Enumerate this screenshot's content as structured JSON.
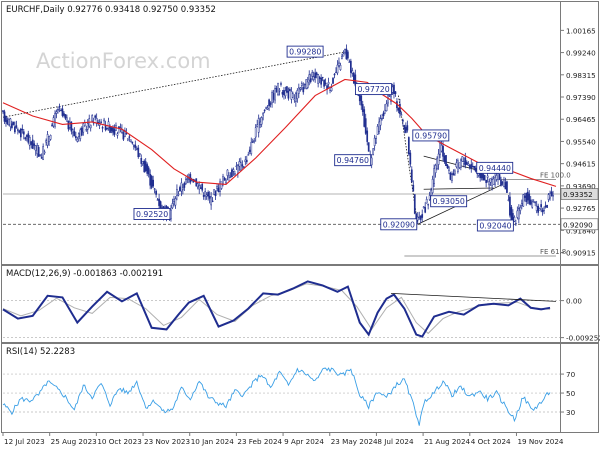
{
  "watermark": "ActionForex.com",
  "colors": {
    "candle": "#1f2d8f",
    "ema": "#e02020",
    "macd": "#1f2d8f",
    "signal": "#b0b0b0",
    "rsi": "#3a9fe6",
    "trendline": "#1a1a1a",
    "label_border": "#1f2d8f",
    "level": "#555555"
  },
  "chart_data": [
    {
      "type": "line",
      "panel": "price",
      "title": "EURCHF,Daily  0.92776  0.93418  0.92750  0.93352",
      "ylim": [
        0.9052,
        1.0068
      ],
      "yticks": [
        "1.00165",
        "0.99240",
        "0.98315",
        "0.97390",
        "0.96465",
        "0.95540",
        "0.94615",
        "0.93690",
        "0.92765",
        "0.91840",
        "0.90915"
      ],
      "current_price_label": "0.93352",
      "current_price": 0.93352,
      "level_label": "0.92090",
      "level": 0.9209,
      "x_tick_labels": [
        "12 Jul 2023",
        "25 Aug 2023",
        "10 Oct 2023",
        "23 Nov 2023",
        "10 Jan 2024",
        "23 Feb 2024",
        "9 Apr 2024",
        "23 May 2024",
        "8 Jul 2024",
        "21 Aug 2024",
        "4 Oct 2024",
        "19 Nov 2024"
      ],
      "x_range": [
        0,
        372
      ],
      "series": [
        {
          "kind": "candles",
          "x": [
            0,
            15,
            27,
            38,
            50,
            62,
            77,
            87,
            98,
            108,
            113,
            118,
            128,
            140,
            151,
            164,
            175,
            186,
            197,
            209,
            221,
            231,
            241,
            248,
            254,
            263,
            273,
            279,
            287,
            295,
            302,
            310,
            318,
            328,
            334,
            339,
            344,
            352,
            358,
            365,
            370
          ],
          "values": [
            0.9665,
            0.958,
            0.9495,
            0.969,
            0.9575,
            0.965,
            0.96,
            0.957,
            0.9423,
            0.927,
            0.9252,
            0.9345,
            0.941,
            0.931,
            0.941,
            0.947,
            0.9664,
            0.978,
            0.9738,
            0.9825,
            0.9785,
            0.9928,
            0.9745,
            0.9476,
            0.9625,
            0.9772,
            0.9579,
            0.9209,
            0.9305,
            0.9535,
            0.941,
            0.948,
            0.9444,
            0.9385,
            0.9405,
            0.9365,
            0.9204,
            0.9328,
            0.9285,
            0.9275,
            0.9335
          ]
        },
        {
          "kind": "ema",
          "x": [
            0,
            20,
            40,
            60,
            80,
            100,
            115,
            130,
            150,
            170,
            190,
            210,
            230,
            245,
            255,
            265,
            275,
            285,
            300,
            320,
            340,
            355,
            372
          ],
          "values": [
            0.9715,
            0.966,
            0.9625,
            0.9635,
            0.9605,
            0.952,
            0.944,
            0.9385,
            0.9375,
            0.9485,
            0.9612,
            0.9745,
            0.9812,
            0.98,
            0.975,
            0.971,
            0.965,
            0.958,
            0.953,
            0.9465,
            0.9435,
            0.94,
            0.9367
          ]
        }
      ],
      "trendlines": [
        {
          "x": [
            0,
            231
          ],
          "values": [
            0.9655,
            0.9928
          ]
        },
        {
          "x": [
            283,
            325
          ],
          "values": [
            0.9493,
            0.9425
          ]
        },
        {
          "x": [
            279,
            336
          ],
          "values": [
            0.9209,
            0.9375
          ]
        },
        {
          "x": [
            283,
            330
          ],
          "values": [
            0.9355,
            0.936
          ]
        }
      ],
      "fe_lines": [
        {
          "label": "FE 100.0",
          "value": 0.9395,
          "x": [
            335,
            372
          ]
        },
        {
          "label": "FE 61.8",
          "value": 0.9077,
          "x": [
            270,
            372
          ]
        }
      ],
      "annotations": [
        {
          "text": "0.99280",
          "x": 216,
          "value": 0.9928,
          "position": "left"
        },
        {
          "text": "0.97720",
          "x": 262,
          "value": 0.9772,
          "position": "left"
        },
        {
          "text": "0.95790",
          "x": 275,
          "value": 0.9579,
          "position": "right"
        },
        {
          "text": "0.94760",
          "x": 248,
          "value": 0.9476,
          "position": "left"
        },
        {
          "text": "0.94440",
          "x": 318,
          "value": 0.9444,
          "position": "right"
        },
        {
          "text": "0.93050",
          "x": 287,
          "value": 0.9305,
          "position": "right"
        },
        {
          "text": "0.92520",
          "x": 113,
          "value": 0.9252,
          "position": "left"
        },
        {
          "text": "0.92090",
          "x": 279,
          "value": 0.9209,
          "position": "left"
        },
        {
          "text": "0.92040",
          "x": 344,
          "value": 0.9204,
          "position": "left"
        }
      ]
    },
    {
      "type": "line",
      "panel": "macd",
      "title": "MACD(12,26,9)  -0.001863  -0.002191",
      "ylim": [
        -0.0101,
        0.0054
      ],
      "yticks": [
        "0.00",
        "-0.009252"
      ],
      "ytick_values": [
        0,
        -0.009252
      ],
      "trendline": {
        "x": [
          261,
          372
        ],
        "values": [
          0.0018,
          -0.0002
        ]
      },
      "series": [
        {
          "name": "MACD",
          "x": [
            0,
            10,
            20,
            30,
            40,
            50,
            60,
            70,
            80,
            90,
            100,
            110,
            118,
            125,
            135,
            145,
            155,
            165,
            175,
            185,
            195,
            205,
            215,
            225,
            232,
            240,
            246,
            252,
            258,
            263,
            270,
            278,
            282,
            290,
            300,
            310,
            320,
            330,
            340,
            348,
            355,
            362,
            368
          ],
          "values": [
            -0.0022,
            -0.0045,
            -0.0038,
            0.0012,
            0.0008,
            -0.0055,
            -0.0015,
            0.0022,
            -0.0002,
            0.0018,
            -0.0068,
            -0.0072,
            -0.0035,
            -0.0005,
            0.0012,
            -0.0065,
            -0.005,
            -0.002,
            0.0018,
            0.0015,
            0.003,
            0.0048,
            0.0038,
            0.0022,
            0.0035,
            -0.0055,
            -0.0085,
            -0.003,
            0.0005,
            0.0015,
            -0.002,
            -0.0085,
            -0.009,
            -0.004,
            -0.0028,
            -0.0035,
            -0.0012,
            -0.0008,
            -0.0012,
            0.0005,
            -0.0018,
            -0.0022,
            -0.0018
          ]
        },
        {
          "name": "Signal",
          "x": [
            0,
            12,
            24,
            36,
            48,
            60,
            72,
            84,
            96,
            108,
            120,
            132,
            144,
            156,
            168,
            180,
            192,
            204,
            216,
            228,
            238,
            248,
            258,
            268,
            278,
            286,
            296,
            306,
            316,
            326,
            336,
            346,
            356,
            368
          ],
          "values": [
            -0.002,
            -0.0038,
            -0.0025,
            0.0006,
            -0.0018,
            -0.0032,
            0.0008,
            0.0005,
            -0.002,
            -0.0062,
            -0.0042,
            0.0003,
            -0.0035,
            -0.0052,
            -0.0012,
            0.0012,
            0.0024,
            0.0042,
            0.0036,
            0.0025,
            -0.0015,
            -0.0072,
            -0.0018,
            0.0008,
            -0.0055,
            -0.0082,
            -0.0045,
            -0.0028,
            -0.0018,
            -0.0008,
            -0.0006,
            -0.0004,
            -0.0018,
            -0.0022
          ]
        }
      ]
    },
    {
      "type": "line",
      "panel": "rsi",
      "title": "RSI(14)  52.2283",
      "ylim": [
        10,
        88
      ],
      "yticks": [
        "70",
        "50",
        "30"
      ],
      "ytick_values": [
        70,
        50,
        30
      ],
      "series": [
        {
          "name": "RSI",
          "x": [
            0,
            6,
            12,
            18,
            24,
            30,
            36,
            42,
            48,
            54,
            60,
            66,
            72,
            78,
            84,
            90,
            96,
            102,
            108,
            114,
            120,
            126,
            132,
            138,
            144,
            150,
            156,
            162,
            168,
            174,
            180,
            186,
            192,
            198,
            204,
            210,
            216,
            222,
            228,
            234,
            240,
            246,
            252,
            258,
            264,
            270,
            276,
            280,
            284,
            290,
            296,
            302,
            308,
            314,
            320,
            326,
            332,
            338,
            344,
            350,
            356,
            362,
            368
          ],
          "values": [
            38,
            30,
            44,
            42,
            48,
            62,
            55,
            46,
            32,
            58,
            46,
            60,
            38,
            55,
            50,
            62,
            35,
            42,
            30,
            33,
            55,
            44,
            63,
            46,
            40,
            36,
            52,
            48,
            60,
            70,
            55,
            72,
            58,
            75,
            70,
            62,
            76,
            74,
            68,
            76,
            48,
            36,
            52,
            45,
            58,
            64,
            38,
            18,
            42,
            50,
            63,
            48,
            56,
            46,
            52,
            44,
            50,
            36,
            22,
            46,
            32,
            40,
            52
          ]
        }
      ]
    }
  ]
}
